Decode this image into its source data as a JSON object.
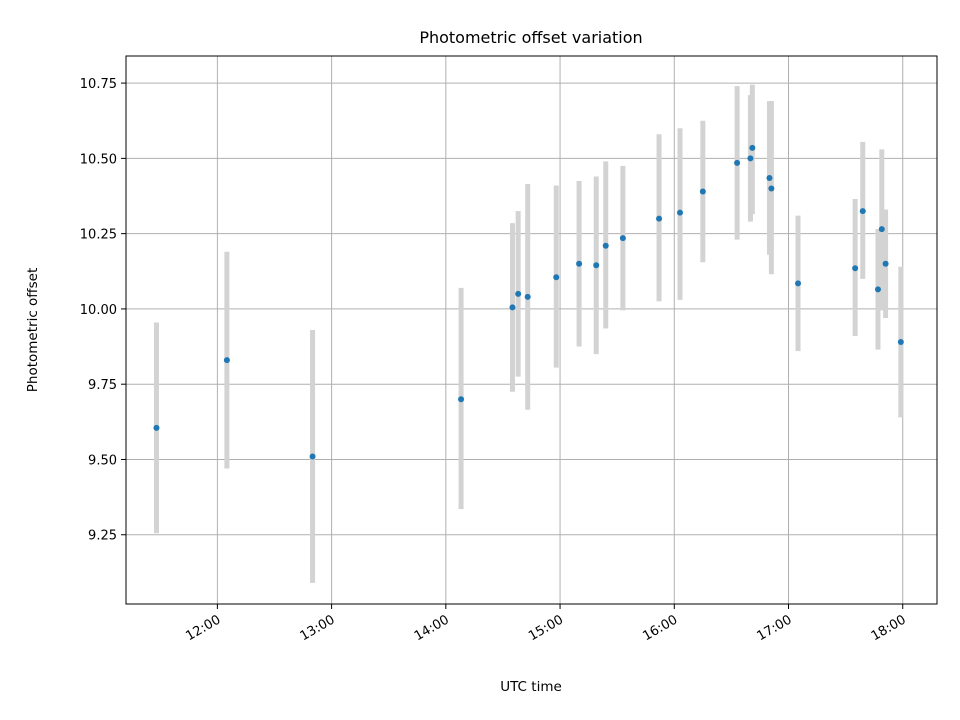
{
  "chart_data": {
    "type": "scatter",
    "title": "Photometric offset variation",
    "xlabel": "UTC time",
    "ylabel": "Photometric offset",
    "x_axis": {
      "kind": "time",
      "range": [
        "11:12",
        "18:18"
      ],
      "ticks": [
        "12:00",
        "13:00",
        "14:00",
        "15:00",
        "16:00",
        "17:00",
        "18:00"
      ]
    },
    "y_axis": {
      "range": [
        9.02,
        10.84
      ],
      "ticks": [
        9.25,
        9.5,
        9.75,
        10.0,
        10.25,
        10.5,
        10.75
      ],
      "tick_labels": [
        "9.25",
        "9.50",
        "9.75",
        "10.00",
        "10.25",
        "10.50",
        "10.75"
      ]
    },
    "grid": true,
    "colors": {
      "point": "#1f77b4",
      "errorbar": "#d3d3d3",
      "grid": "#b0b0b0"
    },
    "points": [
      {
        "time": "11:28",
        "y": 9.605,
        "low": 9.255,
        "high": 9.955
      },
      {
        "time": "12:05",
        "y": 9.83,
        "low": 9.47,
        "high": 10.19
      },
      {
        "time": "12:50",
        "y": 9.51,
        "low": 9.09,
        "high": 9.93
      },
      {
        "time": "14:08",
        "y": 9.7,
        "low": 9.335,
        "high": 10.07
      },
      {
        "time": "14:35",
        "y": 10.005,
        "low": 9.725,
        "high": 10.285
      },
      {
        "time": "14:38",
        "y": 10.05,
        "low": 9.775,
        "high": 10.325
      },
      {
        "time": "14:43",
        "y": 10.04,
        "low": 9.665,
        "high": 10.415
      },
      {
        "time": "14:58",
        "y": 10.105,
        "low": 9.805,
        "high": 10.41
      },
      {
        "time": "15:10",
        "y": 10.15,
        "low": 9.875,
        "high": 10.425
      },
      {
        "time": "15:19",
        "y": 10.145,
        "low": 9.85,
        "high": 10.44
      },
      {
        "time": "15:24",
        "y": 10.21,
        "low": 9.935,
        "high": 10.49
      },
      {
        "time": "15:33",
        "y": 10.235,
        "low": 9.995,
        "high": 10.475
      },
      {
        "time": "15:52",
        "y": 10.3,
        "low": 10.025,
        "high": 10.58
      },
      {
        "time": "16:03",
        "y": 10.32,
        "low": 10.03,
        "high": 10.6
      },
      {
        "time": "16:15",
        "y": 10.39,
        "low": 10.155,
        "high": 10.625
      },
      {
        "time": "16:33",
        "y": 10.485,
        "low": 10.23,
        "high": 10.74
      },
      {
        "time": "16:40",
        "y": 10.5,
        "low": 10.29,
        "high": 10.71
      },
      {
        "time": "16:41",
        "y": 10.535,
        "low": 10.315,
        "high": 10.745
      },
      {
        "time": "16:50",
        "y": 10.435,
        "low": 10.18,
        "high": 10.69
      },
      {
        "time": "16:51",
        "y": 10.4,
        "low": 10.115,
        "high": 10.69
      },
      {
        "time": "17:05",
        "y": 10.085,
        "low": 9.86,
        "high": 10.31
      },
      {
        "time": "17:35",
        "y": 10.135,
        "low": 9.91,
        "high": 10.365
      },
      {
        "time": "17:39",
        "y": 10.325,
        "low": 10.1,
        "high": 10.555
      },
      {
        "time": "17:47",
        "y": 10.065,
        "low": 9.865,
        "high": 10.265
      },
      {
        "time": "17:49",
        "y": 10.265,
        "low": 9.995,
        "high": 10.53
      },
      {
        "time": "17:51",
        "y": 10.15,
        "low": 9.97,
        "high": 10.33
      },
      {
        "time": "17:59",
        "y": 9.89,
        "low": 9.64,
        "high": 10.14
      }
    ]
  }
}
